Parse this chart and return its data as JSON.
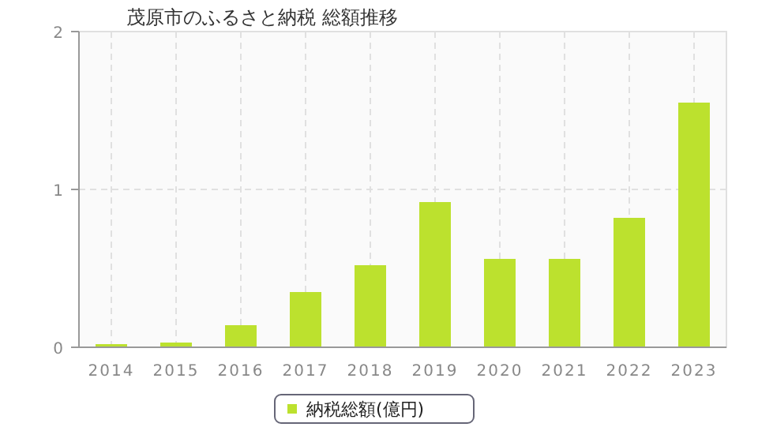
{
  "chart_data": {
    "type": "bar",
    "title": "茂原市のふるさと納税  総額推移",
    "categories": [
      "2014",
      "2015",
      "2016",
      "2017",
      "2018",
      "2019",
      "2020",
      "2021",
      "2022",
      "2023"
    ],
    "series": [
      {
        "name": "納税総額(億円)",
        "color": "#bce12e",
        "values": [
          0.02,
          0.03,
          0.14,
          0.35,
          0.52,
          0.92,
          0.56,
          0.56,
          0.82,
          1.55
        ]
      }
    ],
    "ylim": [
      0,
      2
    ],
    "yticks": [
      0,
      1,
      2
    ],
    "grid": true,
    "legend": "bottom"
  }
}
